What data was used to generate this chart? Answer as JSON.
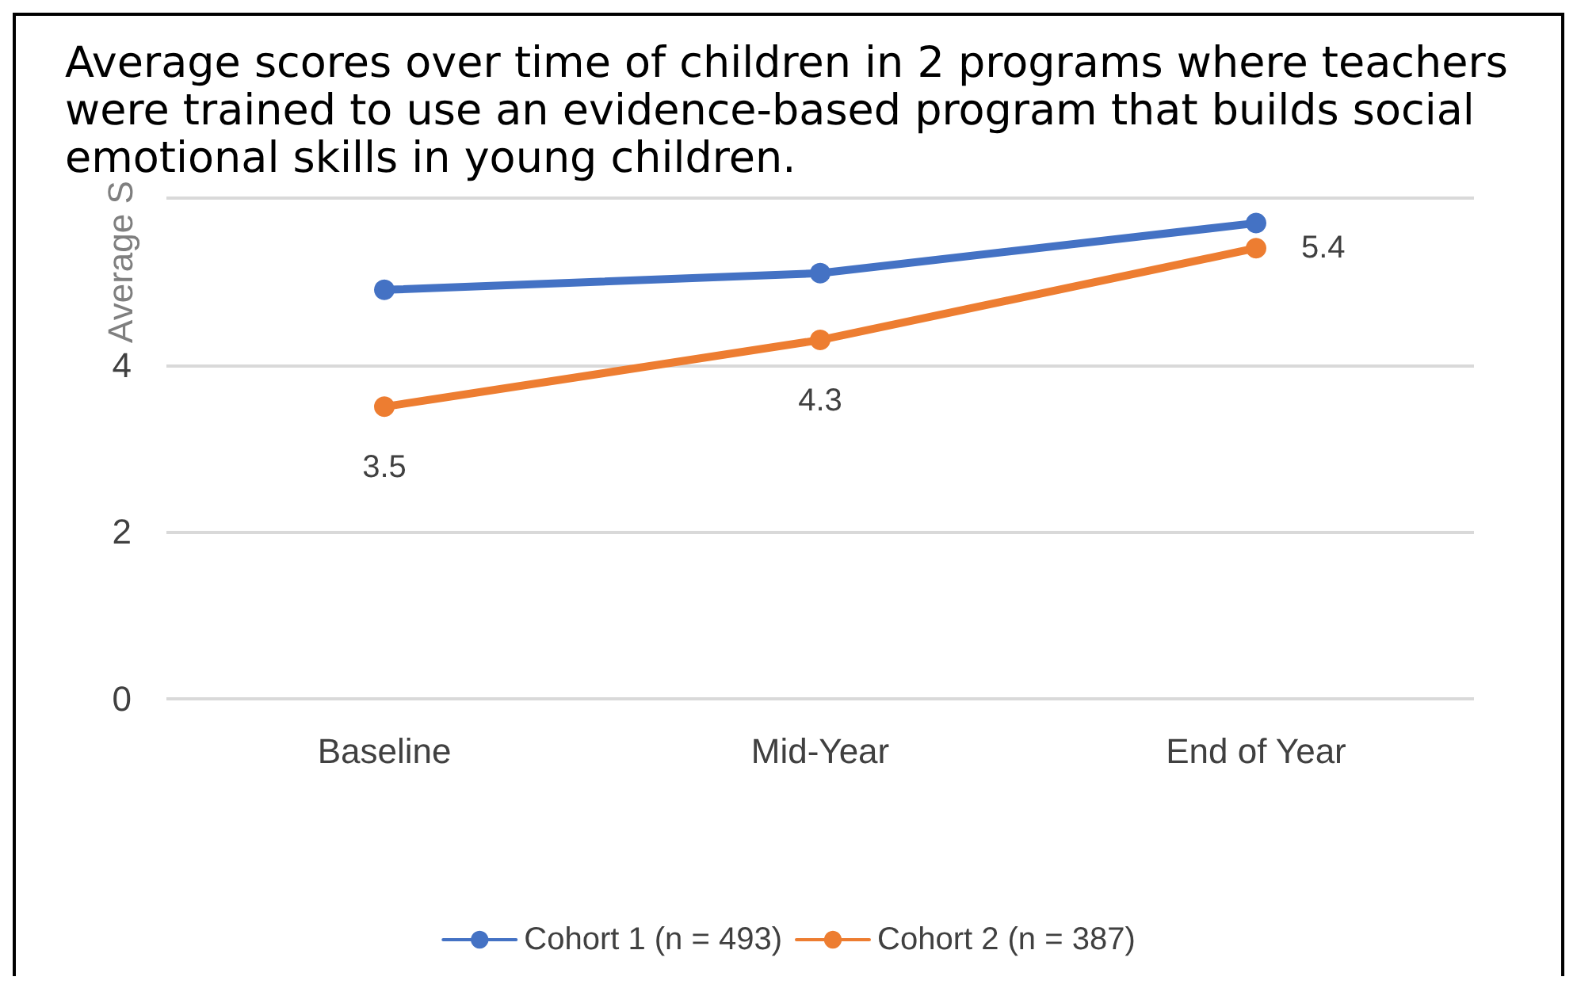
{
  "chart_data": {
    "type": "line",
    "title": "Average scores over time of children in 2 programs where teachers were trained to use an evidence-based program that builds social emotional skills in young children.",
    "ylabel": "Average S",
    "categories": [
      "Baseline",
      "Mid-Year",
      "End of Year"
    ],
    "series": [
      {
        "name": "Cohort 1 (n = 493)",
        "color": "#4472c4",
        "values": [
          4.9,
          5.1,
          5.7
        ]
      },
      {
        "name": "Cohort 2 (n = 387)",
        "color": "#ed7d31",
        "values": [
          3.5,
          4.3,
          5.4
        ],
        "value_labels": [
          "3.5",
          "4.3",
          "5.4"
        ]
      }
    ],
    "ylim": [
      0,
      6
    ],
    "yticks": [
      0,
      2,
      4,
      {
        "value": 6,
        "label": null
      }
    ],
    "grid": "y",
    "legend": "bottom",
    "marker": "circle",
    "line_style": "solid"
  }
}
